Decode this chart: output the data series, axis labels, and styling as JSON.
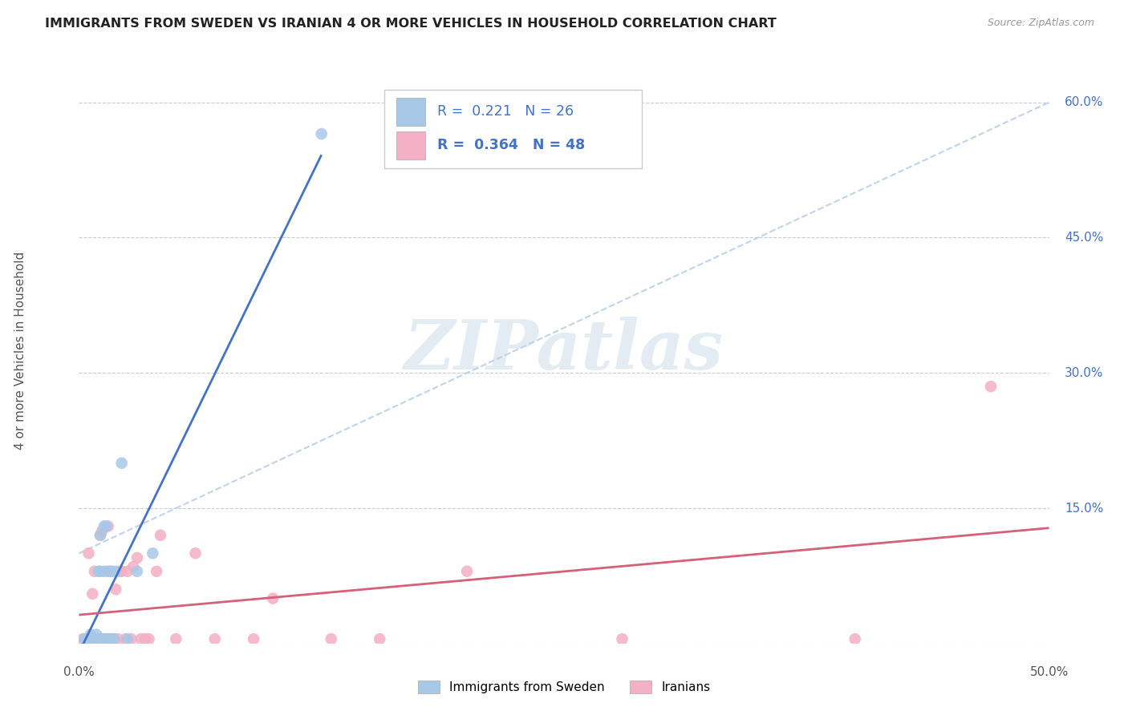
{
  "title": "IMMIGRANTS FROM SWEDEN VS IRANIAN 4 OR MORE VEHICLES IN HOUSEHOLD CORRELATION CHART",
  "source": "Source: ZipAtlas.com",
  "ylabel": "4 or more Vehicles in Household",
  "x_min": 0.0,
  "x_max": 0.5,
  "y_min": 0.0,
  "y_max": 0.65,
  "x_ticks": [
    0.0,
    0.1,
    0.2,
    0.3,
    0.4,
    0.5
  ],
  "x_tick_labels": [
    "0.0%",
    "",
    "",
    "",
    "",
    "50.0%"
  ],
  "y_ticks": [
    0.0,
    0.15,
    0.3,
    0.45,
    0.6
  ],
  "y_tick_labels": [
    "",
    "15.0%",
    "30.0%",
    "45.0%",
    "60.0%"
  ],
  "grid_color": "#cccccc",
  "background_color": "#ffffff",
  "sweden_color": "#a8c8e8",
  "iran_color": "#f4b0c4",
  "sweden_line_color": "#4472c4",
  "iran_line_color": "#d4607a",
  "diag_line_color": "#b8d0e8",
  "R_sweden": "0.221",
  "N_sweden": "26",
  "R_iran": "0.364",
  "N_iran": "48",
  "watermark_text": "ZIPatlas",
  "legend_text_color": "#4472c4",
  "sweden_x": [
    0.003,
    0.005,
    0.006,
    0.007,
    0.008,
    0.009,
    0.01,
    0.01,
    0.011,
    0.011,
    0.012,
    0.013,
    0.013,
    0.014,
    0.014,
    0.015,
    0.015,
    0.016,
    0.017,
    0.018,
    0.019,
    0.022,
    0.025,
    0.03,
    0.038,
    0.125
  ],
  "sweden_y": [
    0.005,
    0.005,
    0.01,
    0.005,
    0.005,
    0.01,
    0.005,
    0.08,
    0.08,
    0.12,
    0.005,
    0.08,
    0.13,
    0.005,
    0.13,
    0.005,
    0.08,
    0.005,
    0.08,
    0.005,
    0.08,
    0.2,
    0.005,
    0.08,
    0.1,
    0.565
  ],
  "iran_x": [
    0.002,
    0.003,
    0.004,
    0.005,
    0.005,
    0.006,
    0.007,
    0.007,
    0.008,
    0.008,
    0.009,
    0.01,
    0.011,
    0.011,
    0.012,
    0.012,
    0.013,
    0.014,
    0.015,
    0.015,
    0.016,
    0.017,
    0.018,
    0.019,
    0.02,
    0.021,
    0.022,
    0.024,
    0.025,
    0.027,
    0.028,
    0.03,
    0.032,
    0.034,
    0.036,
    0.04,
    0.042,
    0.05,
    0.06,
    0.07,
    0.09,
    0.1,
    0.13,
    0.155,
    0.2,
    0.28,
    0.4,
    0.47
  ],
  "iran_y": [
    0.005,
    0.005,
    0.005,
    0.005,
    0.1,
    0.005,
    0.005,
    0.055,
    0.005,
    0.08,
    0.005,
    0.005,
    0.005,
    0.12,
    0.005,
    0.125,
    0.005,
    0.005,
    0.005,
    0.13,
    0.08,
    0.005,
    0.005,
    0.06,
    0.005,
    0.08,
    0.08,
    0.005,
    0.08,
    0.005,
    0.085,
    0.095,
    0.005,
    0.005,
    0.005,
    0.08,
    0.12,
    0.005,
    0.1,
    0.005,
    0.005,
    0.05,
    0.005,
    0.005,
    0.08,
    0.005,
    0.005,
    0.285
  ]
}
